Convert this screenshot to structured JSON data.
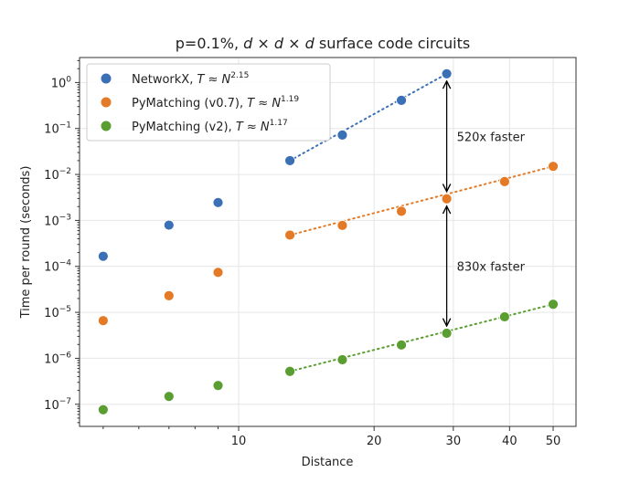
{
  "chart_data": {
    "type": "scatter",
    "title": {
      "prefix": "p=0.1%, ",
      "math": "d × d × d",
      "suffix": " surface code circuits"
    },
    "xlabel": "Distance",
    "ylabel": "Time per round (seconds)",
    "xscale": "log",
    "yscale": "log",
    "xlim": [
      4.43,
      56.2
    ],
    "ylim": [
      3.3e-08,
      3.5
    ],
    "grid": true,
    "legend_placement": "top-left",
    "x_ticks": [
      {
        "v": 10,
        "label": "10"
      },
      {
        "v": 20,
        "label": "20"
      },
      {
        "v": 30,
        "label": "30"
      },
      {
        "v": 40,
        "label": "40"
      },
      {
        "v": 50,
        "label": "50"
      }
    ],
    "y_ticks": [
      {
        "exp": 0,
        "label": "10",
        "sup": "0"
      },
      {
        "exp": -1,
        "label": "10",
        "sup": "−1"
      },
      {
        "exp": -2,
        "label": "10",
        "sup": "−2"
      },
      {
        "exp": -3,
        "label": "10",
        "sup": "−3"
      },
      {
        "exp": -4,
        "label": "10",
        "sup": "−4"
      },
      {
        "exp": -5,
        "label": "10",
        "sup": "−5"
      },
      {
        "exp": -6,
        "label": "10",
        "sup": "−6"
      },
      {
        "exp": -7,
        "label": "10",
        "sup": "−7"
      }
    ],
    "x": [
      5,
      7,
      9,
      13,
      17,
      23,
      29,
      39,
      50
    ],
    "series": [
      {
        "name": "NetworkX",
        "legend_math": "T ≈ N",
        "exponent": "2.15",
        "color": "#3b6fb6",
        "values": [
          0.000166,
          0.00079,
          0.00245,
          0.02,
          0.072,
          0.41,
          1.55,
          null,
          null
        ],
        "fit_from": 13
      },
      {
        "name": "PyMatching (v0.7)",
        "legend_math": "T ≈ N",
        "exponent": "1.19",
        "color": "#e57a26",
        "values": [
          6.6e-06,
          2.3e-05,
          7.4e-05,
          0.00048,
          0.00078,
          0.00158,
          0.00295,
          0.007,
          0.015
        ],
        "fit_from": 13
      },
      {
        "name": "PyMatching (v2)",
        "legend_math": "T ≈ N",
        "exponent": "1.17",
        "color": "#5a9e32",
        "values": [
          7.6e-08,
          1.48e-07,
          2.56e-07,
          5.2e-07,
          9.3e-07,
          1.95e-06,
          3.5e-06,
          8e-06,
          1.5e-05
        ],
        "fit_from": 13
      }
    ],
    "annotations": [
      {
        "text": "520x faster",
        "x": 29,
        "from_series": 0,
        "to_series": 1
      },
      {
        "text": "830x faster",
        "x": 29,
        "from_series": 1,
        "to_series": 2
      }
    ]
  }
}
